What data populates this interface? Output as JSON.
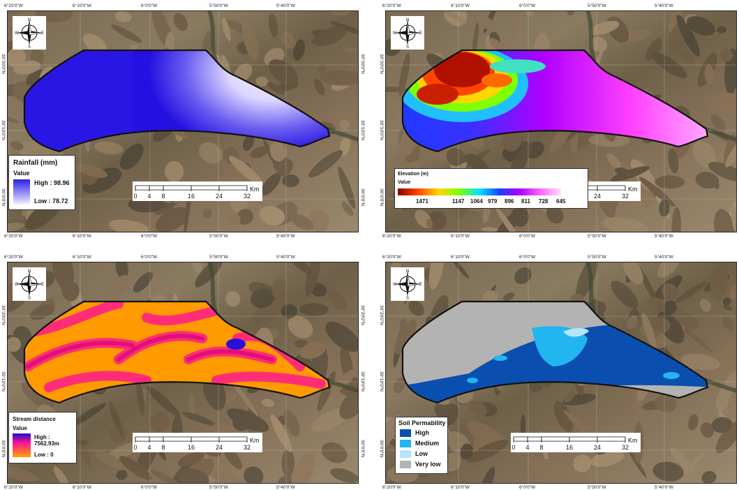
{
  "panels": [
    {
      "id": "rainfall",
      "legend": {
        "title": "Rainfall (mm)",
        "value_label": "Value",
        "high": "High : 98.96",
        "low": "Low : 78.72",
        "colors": [
          "#2b1ee6",
          "#f2f0ff"
        ]
      },
      "fill": [
        "#2410e0",
        "#3a2cf0",
        "#e0dcff",
        "#c9c2ff"
      ]
    },
    {
      "id": "elevation",
      "legend": {
        "title": "Elevation (m)",
        "value_label": "Value",
        "ticks": [
          "1471",
          "1147",
          "1064",
          "979",
          "896",
          "811",
          "728",
          "645"
        ],
        "colors": [
          "#8b0000",
          "#ff4500",
          "#ffd700",
          "#7fff00",
          "#00e5ff",
          "#1e3cff",
          "#b000ff",
          "#ff66ff"
        ]
      }
    },
    {
      "id": "stream",
      "legend": {
        "title": "Stream distance",
        "value_label": "Value",
        "high": "High : 7562.93m",
        "low": "Low : 0",
        "colors": [
          "#ff1493",
          "#ffa500"
        ]
      }
    },
    {
      "id": "soil",
      "legend": {
        "title": "Soil Permability",
        "classes": [
          {
            "label": "High",
            "color": "#0a4fb0"
          },
          {
            "label": "Medium",
            "color": "#22b5f0"
          },
          {
            "label": "Low",
            "color": "#b5e6fa"
          },
          {
            "label": "Very low",
            "color": "#b3b3b3"
          }
        ]
      }
    }
  ],
  "coords": {
    "top": [
      "6°20'0\"W",
      "6°10'0\"W",
      "6°0'0\"W",
      "5°50'0\"W",
      "5°40'0\"W"
    ],
    "side": [
      "30°20'0\"N",
      "30°10'0\"N",
      "30°0'0\"N"
    ]
  },
  "scalebar": {
    "ticks": [
      "0",
      "4",
      "8",
      "16",
      "24",
      "32"
    ],
    "unit": "Km"
  },
  "compass": {
    "n": "N",
    "s": "S",
    "e": "E",
    "w": "W"
  }
}
